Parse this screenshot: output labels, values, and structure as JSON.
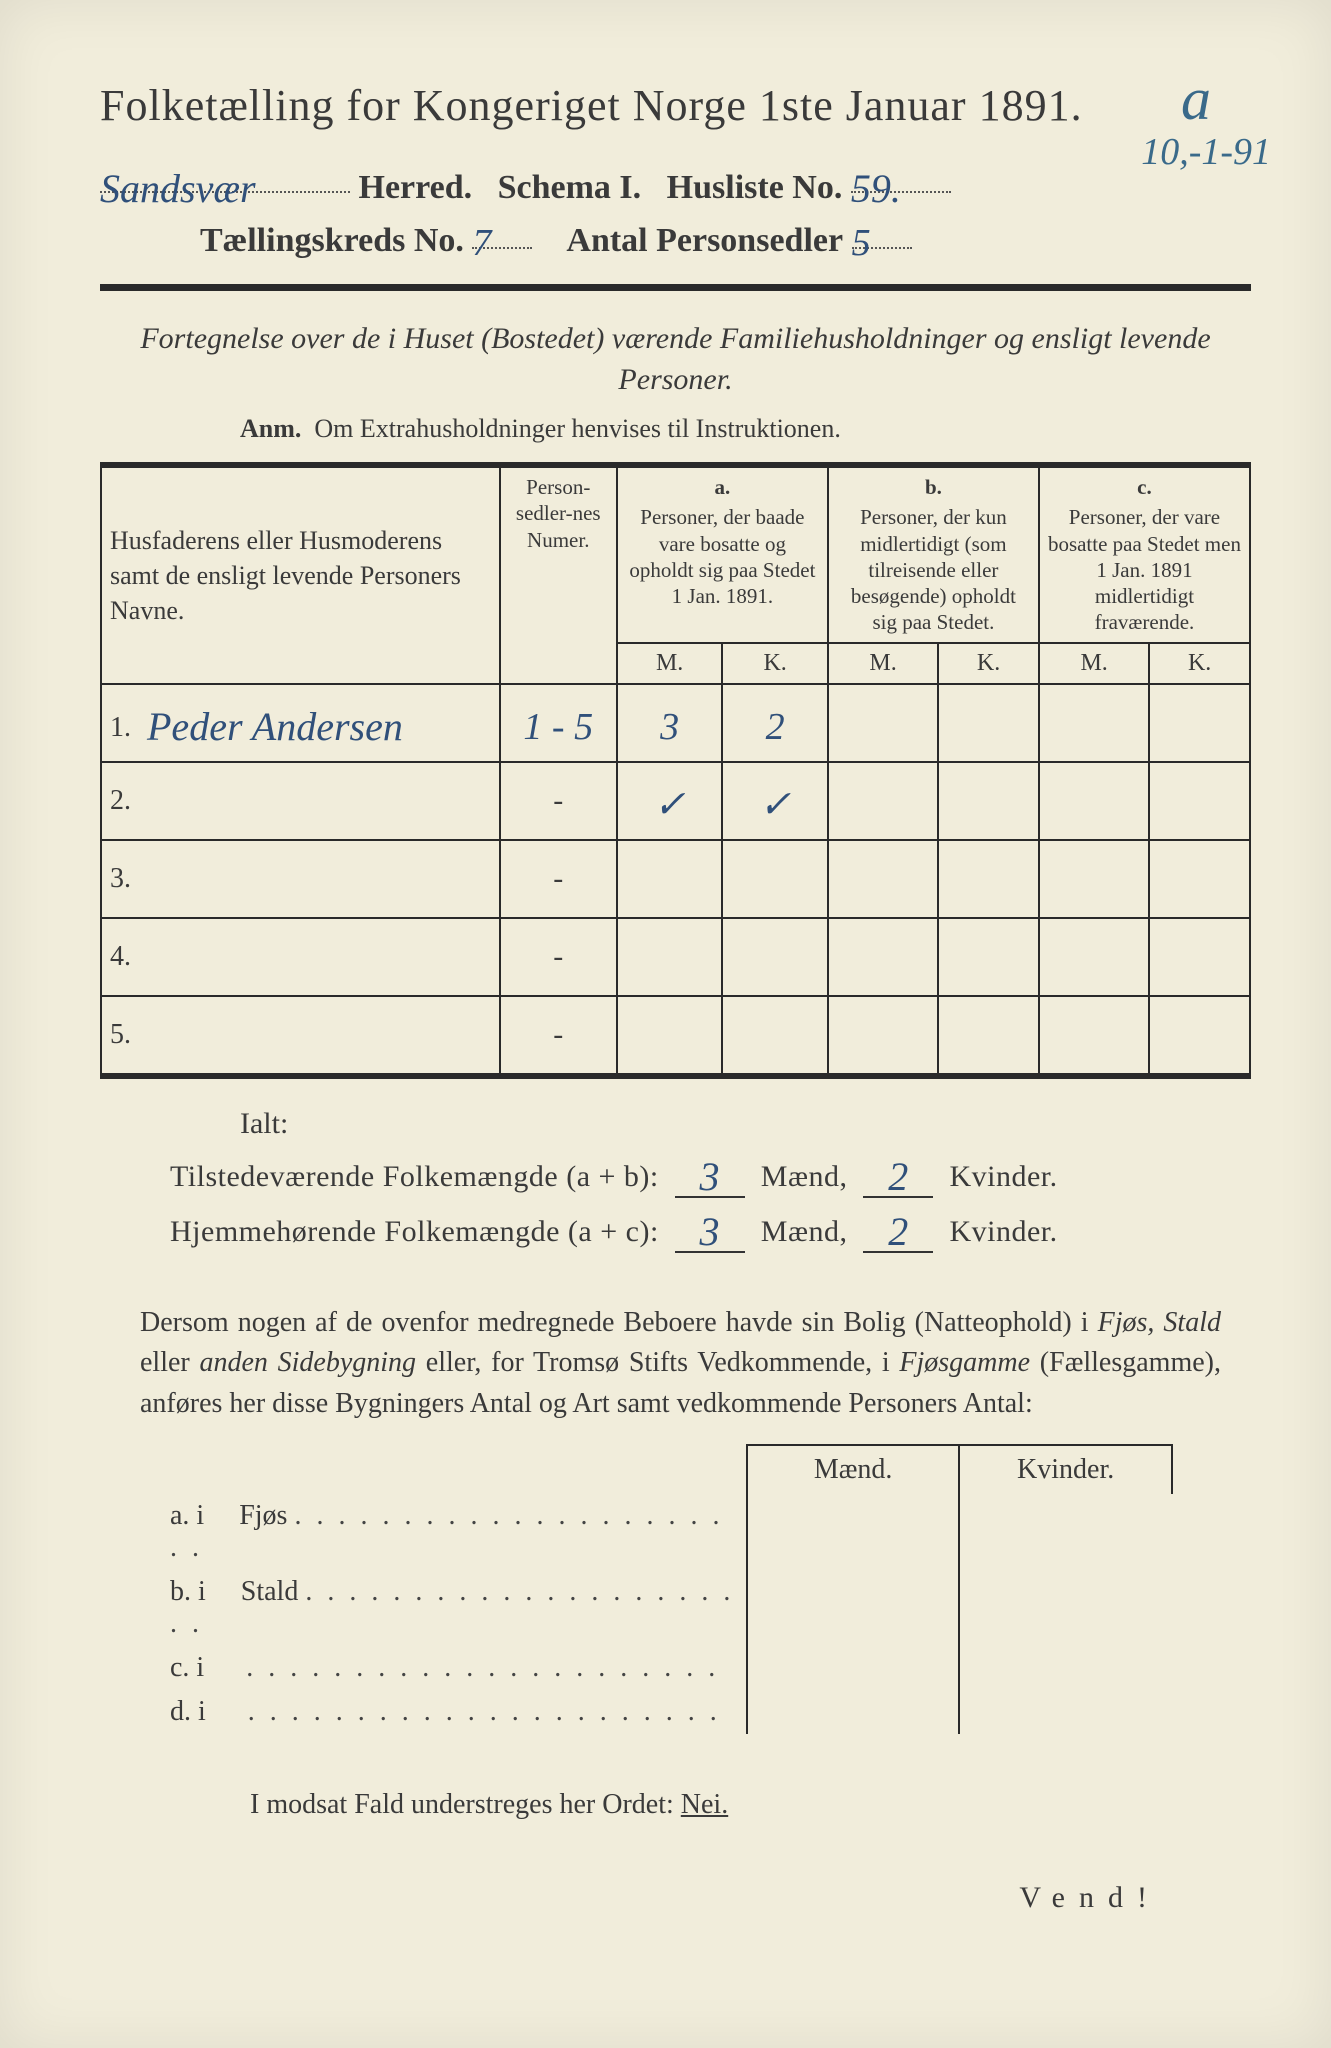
{
  "margin_notes": {
    "letter": "a",
    "date": "10,-1-91"
  },
  "title": "Folketælling for Kongeriget Norge 1ste Januar 1891.",
  "header": {
    "herred_value": "Sandsvær",
    "herred_label": "Herred.",
    "schema_label": "Schema I.",
    "husliste_label": "Husliste No.",
    "husliste_value": "59.",
    "kreds_label": "Tællingskreds No.",
    "kreds_value": "7",
    "antal_label": "Antal Personsedler",
    "antal_value": "5"
  },
  "subtitle": "Fortegnelse over de i Huset (Bostedet) værende Familiehusholdninger og ensligt levende Personer.",
  "anm_label": "Anm.",
  "anm_text": "Om Extrahusholdninger henvises til Instruktionen.",
  "table": {
    "col_name": "Husfaderens eller Husmoderens samt de ensligt levende Personers Navne.",
    "col_numer": "Person-sedler-nes Numer.",
    "col_a_label": "a.",
    "col_a_text": "Personer, der baade vare bosatte og opholdt sig paa Stedet 1 Jan. 1891.",
    "col_b_label": "b.",
    "col_b_text": "Personer, der kun midlertidigt (som tilreisende eller besøgende) opholdt sig paa Stedet.",
    "col_c_label": "c.",
    "col_c_text": "Personer, der vare bosatte paa Stedet men 1 Jan. 1891 midlertidigt fraværende.",
    "m": "M.",
    "k": "K.",
    "rows": [
      {
        "n": "1.",
        "name": "Peder Andersen",
        "numer": "1 - 5",
        "a_m": "3",
        "a_k": "2",
        "b_m": "",
        "b_k": "",
        "c_m": "",
        "c_k": ""
      },
      {
        "n": "2.",
        "name": "",
        "numer": "-",
        "a_m": "✓",
        "a_k": "✓",
        "b_m": "",
        "b_k": "",
        "c_m": "",
        "c_k": ""
      },
      {
        "n": "3.",
        "name": "",
        "numer": "-",
        "a_m": "",
        "a_k": "",
        "b_m": "",
        "b_k": "",
        "c_m": "",
        "c_k": ""
      },
      {
        "n": "4.",
        "name": "",
        "numer": "-",
        "a_m": "",
        "a_k": "",
        "b_m": "",
        "b_k": "",
        "c_m": "",
        "c_k": ""
      },
      {
        "n": "5.",
        "name": "",
        "numer": "-",
        "a_m": "",
        "a_k": "",
        "b_m": "",
        "b_k": "",
        "c_m": "",
        "c_k": ""
      }
    ]
  },
  "ialt": "Ialt:",
  "sum": {
    "line1_label": "Tilstedeværende Folkemængde (a + b):",
    "line2_label": "Hjemmehørende Folkemængde (a + c):",
    "maend_word": "Mænd,",
    "kvinder_word": "Kvinder.",
    "l1_m": "3",
    "l1_k": "2",
    "l2_m": "3",
    "l2_k": "2"
  },
  "paragraph": "Dersom nogen af de ovenfor medregnede Beboere havde sin Bolig (Natteophold) i Fjøs, Stald eller anden Sidebygning eller, for Tromsø Stifts Vedkommende, i Fjøsgamme (Fællesgamme), anføres her disse Bygningers Antal og Art samt vedkommende Personers Antal:",
  "lower": {
    "maend": "Mænd.",
    "kvinder": "Kvinder.",
    "rows": [
      {
        "k": "a.  i",
        "label": "Fjøs"
      },
      {
        "k": "b.  i",
        "label": "Stald"
      },
      {
        "k": "c.  i",
        "label": ""
      },
      {
        "k": "d.  i",
        "label": ""
      }
    ]
  },
  "nei_line_pre": "I modsat Fald understreges her Ordet: ",
  "nei_word": "Nei.",
  "vend": "Vend!",
  "colors": {
    "paper": "#f1eddb",
    "ink": "#3a3a3a",
    "pen": "#30507a",
    "pen2": "#3a6a8a"
  }
}
